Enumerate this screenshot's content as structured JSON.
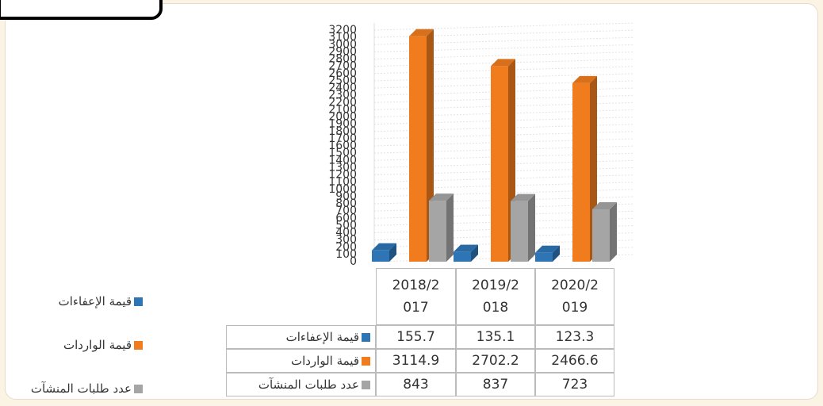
{
  "chart_data": {
    "type": "bar3d",
    "categories": [
      "2018/2017",
      "2019/2018",
      "2020/2019"
    ],
    "series": [
      {
        "name": "قيمة الإعفاءات",
        "color": "#2e75b6",
        "values": [
          155.7,
          135.1,
          123.3
        ]
      },
      {
        "name": "قيمة الواردات",
        "color": "#f07c1e",
        "values": [
          3114.9,
          2702.2,
          2466.6
        ]
      },
      {
        "name": "عدد طلبات المنشآت",
        "color": "#a5a5a5",
        "values": [
          843,
          837,
          723
        ]
      }
    ],
    "ylim": [
      0,
      3200
    ],
    "yticks": [
      0,
      100,
      200,
      300,
      400,
      500,
      600,
      700,
      800,
      900,
      1000,
      1100,
      1200,
      1300,
      1400,
      1500,
      1600,
      1700,
      1800,
      1900,
      2000,
      2100,
      2200,
      2300,
      2400,
      2500,
      2600,
      2700,
      2800,
      2900,
      3000,
      3100,
      3200
    ],
    "grid": true
  }
}
